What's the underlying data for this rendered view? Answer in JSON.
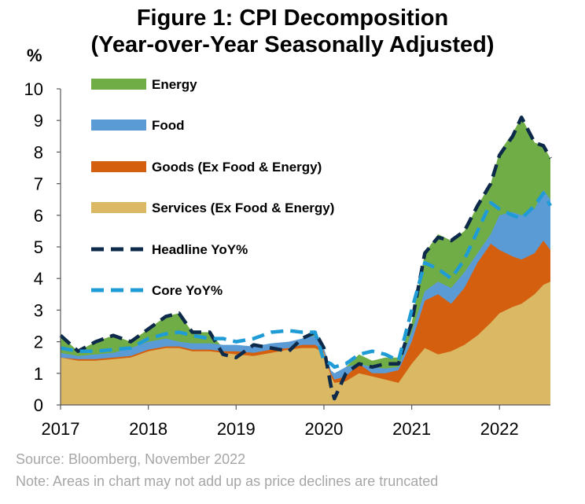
{
  "title_line1": "Figure 1: CPI Decomposition",
  "title_line2": "(Year-over-Year Seasonally Adjusted)",
  "unit_label": "%",
  "source": "Source: Bloomberg, November 2022",
  "note": "Note: Areas in chart may not add up as price declines are truncated",
  "chart_data": {
    "type": "area",
    "ylim": [
      0,
      10
    ],
    "xlim": [
      2017.0,
      2022.58
    ],
    "yticks": [
      "0",
      "1",
      "2",
      "3",
      "4",
      "5",
      "6",
      "7",
      "8",
      "9",
      "10"
    ],
    "xticks": [
      "2017",
      "2018",
      "2019",
      "2020",
      "2021",
      "2022"
    ],
    "grid": false,
    "legend_position": "top-left",
    "colors": {
      "Energy": "#70ad47",
      "Food": "#5b9bd5",
      "Goods": "#d45f0f",
      "Services": "#dbb864",
      "Headline": "#0d2a4a",
      "Core": "#1f9bd6"
    },
    "series": [
      {
        "name": "Energy",
        "kind": "area",
        "top": [
          [
            2017.0,
            2.2
          ],
          [
            2017.2,
            1.7
          ],
          [
            2017.4,
            2.0
          ],
          [
            2017.6,
            2.2
          ],
          [
            2017.8,
            2.0
          ],
          [
            2018.0,
            2.4
          ],
          [
            2018.2,
            2.8
          ],
          [
            2018.35,
            2.9
          ],
          [
            2018.5,
            2.3
          ],
          [
            2018.7,
            2.3
          ],
          [
            2018.85,
            1.8
          ],
          [
            2019.0,
            1.6
          ],
          [
            2019.2,
            1.9
          ],
          [
            2019.4,
            1.8
          ],
          [
            2019.6,
            1.7
          ],
          [
            2019.75,
            2.1
          ],
          [
            2019.9,
            2.3
          ],
          [
            2020.0,
            1.7
          ],
          [
            2020.08,
            0.8
          ],
          [
            2020.12,
            0.4
          ],
          [
            2020.25,
            1.2
          ],
          [
            2020.4,
            1.6
          ],
          [
            2020.55,
            1.4
          ],
          [
            2020.7,
            1.5
          ],
          [
            2020.85,
            1.5
          ],
          [
            2021.0,
            2.6
          ],
          [
            2021.15,
            4.8
          ],
          [
            2021.3,
            5.4
          ],
          [
            2021.45,
            5.2
          ],
          [
            2021.6,
            5.5
          ],
          [
            2021.75,
            6.3
          ],
          [
            2021.9,
            7.0
          ],
          [
            2022.0,
            8.0
          ],
          [
            2022.15,
            8.6
          ],
          [
            2022.25,
            9.1
          ],
          [
            2022.4,
            8.3
          ],
          [
            2022.5,
            8.2
          ],
          [
            2022.58,
            7.8
          ]
        ]
      },
      {
        "name": "Food",
        "kind": "area",
        "top": [
          [
            2017.0,
            1.65
          ],
          [
            2017.2,
            1.55
          ],
          [
            2017.4,
            1.6
          ],
          [
            2017.6,
            1.65
          ],
          [
            2017.8,
            1.8
          ],
          [
            2018.0,
            2.0
          ],
          [
            2018.2,
            2.1
          ],
          [
            2018.35,
            2.0
          ],
          [
            2018.5,
            1.95
          ],
          [
            2018.7,
            1.95
          ],
          [
            2018.85,
            1.9
          ],
          [
            2019.0,
            1.9
          ],
          [
            2019.2,
            1.85
          ],
          [
            2019.4,
            1.95
          ],
          [
            2019.6,
            2.0
          ],
          [
            2019.75,
            2.1
          ],
          [
            2019.9,
            2.2
          ],
          [
            2020.0,
            1.8
          ],
          [
            2020.08,
            1.1
          ],
          [
            2020.12,
            1.0
          ],
          [
            2020.25,
            1.2
          ],
          [
            2020.4,
            1.3
          ],
          [
            2020.55,
            1.2
          ],
          [
            2020.7,
            1.15
          ],
          [
            2020.85,
            1.2
          ],
          [
            2021.0,
            2.3
          ],
          [
            2021.15,
            3.6
          ],
          [
            2021.3,
            3.9
          ],
          [
            2021.45,
            3.7
          ],
          [
            2021.6,
            4.2
          ],
          [
            2021.75,
            4.8
          ],
          [
            2021.9,
            5.4
          ],
          [
            2022.0,
            6.0
          ],
          [
            2022.15,
            6.1
          ],
          [
            2022.25,
            6.0
          ],
          [
            2022.4,
            6.2
          ],
          [
            2022.5,
            6.8
          ],
          [
            2022.58,
            6.5
          ]
        ]
      },
      {
        "name": "Goods (Ex Food & Energy)",
        "kind": "area",
        "top": [
          [
            2017.0,
            1.5
          ],
          [
            2017.2,
            1.45
          ],
          [
            2017.4,
            1.45
          ],
          [
            2017.6,
            1.5
          ],
          [
            2017.8,
            1.55
          ],
          [
            2018.0,
            1.75
          ],
          [
            2018.2,
            1.85
          ],
          [
            2018.35,
            1.85
          ],
          [
            2018.5,
            1.75
          ],
          [
            2018.7,
            1.75
          ],
          [
            2018.85,
            1.7
          ],
          [
            2019.0,
            1.7
          ],
          [
            2019.2,
            1.65
          ],
          [
            2019.4,
            1.75
          ],
          [
            2019.6,
            1.8
          ],
          [
            2019.75,
            1.9
          ],
          [
            2019.9,
            1.9
          ],
          [
            2020.0,
            1.7
          ],
          [
            2020.08,
            1.0
          ],
          [
            2020.12,
            0.8
          ],
          [
            2020.25,
            0.9
          ],
          [
            2020.4,
            1.3
          ],
          [
            2020.55,
            1.0
          ],
          [
            2020.7,
            1.0
          ],
          [
            2020.85,
            1.1
          ],
          [
            2021.0,
            2.0
          ],
          [
            2021.15,
            3.3
          ],
          [
            2021.3,
            3.5
          ],
          [
            2021.45,
            3.2
          ],
          [
            2021.6,
            3.7
          ],
          [
            2021.75,
            4.5
          ],
          [
            2021.9,
            5.1
          ],
          [
            2022.0,
            4.9
          ],
          [
            2022.15,
            4.7
          ],
          [
            2022.25,
            4.6
          ],
          [
            2022.4,
            4.8
          ],
          [
            2022.5,
            5.2
          ],
          [
            2022.58,
            4.9
          ]
        ]
      },
      {
        "name": "Services (Ex Food & Energy)",
        "kind": "area",
        "top": [
          [
            2017.0,
            1.5
          ],
          [
            2017.2,
            1.4
          ],
          [
            2017.4,
            1.4
          ],
          [
            2017.6,
            1.45
          ],
          [
            2017.8,
            1.5
          ],
          [
            2018.0,
            1.7
          ],
          [
            2018.2,
            1.8
          ],
          [
            2018.35,
            1.8
          ],
          [
            2018.5,
            1.7
          ],
          [
            2018.7,
            1.7
          ],
          [
            2018.85,
            1.65
          ],
          [
            2019.0,
            1.6
          ],
          [
            2019.2,
            1.55
          ],
          [
            2019.4,
            1.65
          ],
          [
            2019.6,
            1.75
          ],
          [
            2019.75,
            1.8
          ],
          [
            2019.9,
            1.8
          ],
          [
            2020.0,
            1.65
          ],
          [
            2020.08,
            0.9
          ],
          [
            2020.12,
            0.7
          ],
          [
            2020.25,
            0.75
          ],
          [
            2020.4,
            1.0
          ],
          [
            2020.55,
            0.9
          ],
          [
            2020.7,
            0.8
          ],
          [
            2020.85,
            0.7
          ],
          [
            2021.0,
            1.3
          ],
          [
            2021.15,
            1.8
          ],
          [
            2021.3,
            1.6
          ],
          [
            2021.45,
            1.7
          ],
          [
            2021.6,
            1.9
          ],
          [
            2021.75,
            2.2
          ],
          [
            2021.9,
            2.6
          ],
          [
            2022.0,
            2.9
          ],
          [
            2022.15,
            3.1
          ],
          [
            2022.25,
            3.2
          ],
          [
            2022.4,
            3.5
          ],
          [
            2022.5,
            3.8
          ],
          [
            2022.58,
            3.9
          ]
        ]
      },
      {
        "name": "Headline YoY%",
        "kind": "line",
        "dashed": true,
        "points": [
          [
            2017.0,
            2.2
          ],
          [
            2017.2,
            1.7
          ],
          [
            2017.4,
            2.0
          ],
          [
            2017.6,
            2.2
          ],
          [
            2017.8,
            2.0
          ],
          [
            2018.0,
            2.4
          ],
          [
            2018.2,
            2.8
          ],
          [
            2018.35,
            2.9
          ],
          [
            2018.5,
            2.3
          ],
          [
            2018.7,
            2.3
          ],
          [
            2018.85,
            1.6
          ],
          [
            2019.0,
            1.5
          ],
          [
            2019.2,
            1.9
          ],
          [
            2019.4,
            1.8
          ],
          [
            2019.6,
            1.7
          ],
          [
            2019.75,
            2.1
          ],
          [
            2019.9,
            2.3
          ],
          [
            2020.0,
            1.8
          ],
          [
            2020.08,
            0.6
          ],
          [
            2020.12,
            0.2
          ],
          [
            2020.25,
            1.0
          ],
          [
            2020.4,
            1.3
          ],
          [
            2020.55,
            1.2
          ],
          [
            2020.7,
            1.3
          ],
          [
            2020.85,
            1.3
          ],
          [
            2021.0,
            2.6
          ],
          [
            2021.15,
            4.8
          ],
          [
            2021.3,
            5.3
          ],
          [
            2021.45,
            5.2
          ],
          [
            2021.6,
            5.5
          ],
          [
            2021.75,
            6.3
          ],
          [
            2021.9,
            7.0
          ],
          [
            2022.0,
            7.9
          ],
          [
            2022.15,
            8.5
          ],
          [
            2022.25,
            9.1
          ],
          [
            2022.4,
            8.3
          ],
          [
            2022.5,
            8.2
          ],
          [
            2022.58,
            7.8
          ]
        ]
      },
      {
        "name": "Core YoY%",
        "kind": "line",
        "dashed": true,
        "points": [
          [
            2017.0,
            1.8
          ],
          [
            2017.2,
            1.7
          ],
          [
            2017.4,
            1.7
          ],
          [
            2017.6,
            1.75
          ],
          [
            2017.8,
            1.8
          ],
          [
            2018.0,
            2.1
          ],
          [
            2018.2,
            2.25
          ],
          [
            2018.35,
            2.3
          ],
          [
            2018.5,
            2.2
          ],
          [
            2018.7,
            2.1
          ],
          [
            2018.85,
            2.1
          ],
          [
            2019.0,
            2.0
          ],
          [
            2019.2,
            2.1
          ],
          [
            2019.4,
            2.3
          ],
          [
            2019.6,
            2.35
          ],
          [
            2019.75,
            2.3
          ],
          [
            2019.9,
            2.3
          ],
          [
            2020.0,
            1.4
          ],
          [
            2020.08,
            1.3
          ],
          [
            2020.12,
            1.2
          ],
          [
            2020.25,
            1.3
          ],
          [
            2020.4,
            1.6
          ],
          [
            2020.55,
            1.7
          ],
          [
            2020.7,
            1.6
          ],
          [
            2020.85,
            1.4
          ],
          [
            2021.0,
            3.0
          ],
          [
            2021.15,
            4.5
          ],
          [
            2021.3,
            4.3
          ],
          [
            2021.45,
            4.0
          ],
          [
            2021.6,
            4.6
          ],
          [
            2021.75,
            5.5
          ],
          [
            2021.9,
            6.4
          ],
          [
            2022.0,
            6.2
          ],
          [
            2022.15,
            6.0
          ],
          [
            2022.25,
            5.9
          ],
          [
            2022.4,
            6.3
          ],
          [
            2022.5,
            6.7
          ],
          [
            2022.58,
            6.3
          ]
        ]
      }
    ]
  }
}
